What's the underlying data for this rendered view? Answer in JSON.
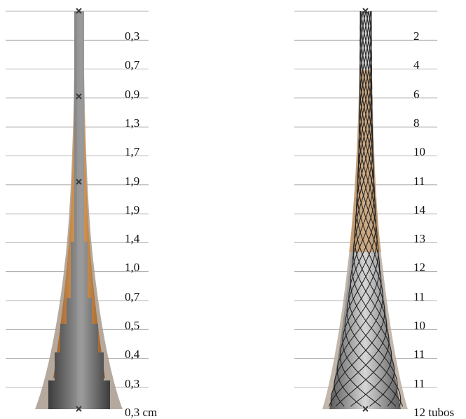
{
  "left_panel": {
    "labels": [
      "0,3",
      "0,7",
      "0,9",
      "1,3",
      "1,7",
      "1,9",
      "1,9",
      "1,4",
      "1,0",
      "0,7",
      "0,5",
      "0,4",
      "0,3",
      "0,3 cm"
    ]
  },
  "right_panel": {
    "labels": [
      "2",
      "4",
      "6",
      "8",
      "10",
      "11",
      "14",
      "13",
      "12",
      "11",
      "10",
      "11",
      "11",
      "12 tubos"
    ]
  },
  "colors": {
    "rule": "#9a9a9a",
    "orange": "#c07a35",
    "grey_dark": "#4a4a4a",
    "grey_light": "#c8c8c8",
    "marker": "#3a3a3a"
  }
}
